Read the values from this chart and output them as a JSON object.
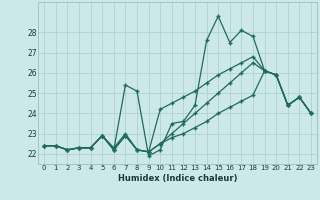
{
  "xlabel": "Humidex (Indice chaleur)",
  "xlim": [
    -0.5,
    23.5
  ],
  "ylim": [
    21.5,
    29.5
  ],
  "yticks": [
    22,
    23,
    24,
    25,
    26,
    27,
    28
  ],
  "xticks": [
    0,
    1,
    2,
    3,
    4,
    5,
    6,
    7,
    8,
    9,
    10,
    11,
    12,
    13,
    14,
    15,
    16,
    17,
    18,
    19,
    20,
    21,
    22,
    23
  ],
  "bg_color": "#cce8e8",
  "grid_color": "#aacece",
  "line_color": "#1e6b5e",
  "lines": [
    [
      22.4,
      22.4,
      22.2,
      22.3,
      22.3,
      22.9,
      22.2,
      25.4,
      25.1,
      21.9,
      22.2,
      23.5,
      23.6,
      24.4,
      27.6,
      28.8,
      27.5,
      28.1,
      27.8,
      26.1,
      25.9,
      24.4,
      24.8,
      24.0
    ],
    [
      22.4,
      22.4,
      22.2,
      22.3,
      22.3,
      22.9,
      22.3,
      23.0,
      22.2,
      22.1,
      24.2,
      24.5,
      24.8,
      25.1,
      25.5,
      25.9,
      26.2,
      26.5,
      26.8,
      26.1,
      25.9,
      24.4,
      24.8,
      24.0
    ],
    [
      22.4,
      22.4,
      22.2,
      22.3,
      22.3,
      22.9,
      22.2,
      22.9,
      22.2,
      22.1,
      22.5,
      23.0,
      23.5,
      24.0,
      24.5,
      25.0,
      25.5,
      26.0,
      26.5,
      26.1,
      25.9,
      24.4,
      24.8,
      24.0
    ],
    [
      22.4,
      22.4,
      22.2,
      22.3,
      22.3,
      22.9,
      22.2,
      22.9,
      22.2,
      22.1,
      22.5,
      22.8,
      23.0,
      23.3,
      23.6,
      24.0,
      24.3,
      24.6,
      24.9,
      26.1,
      25.9,
      24.4,
      24.8,
      24.0
    ]
  ]
}
